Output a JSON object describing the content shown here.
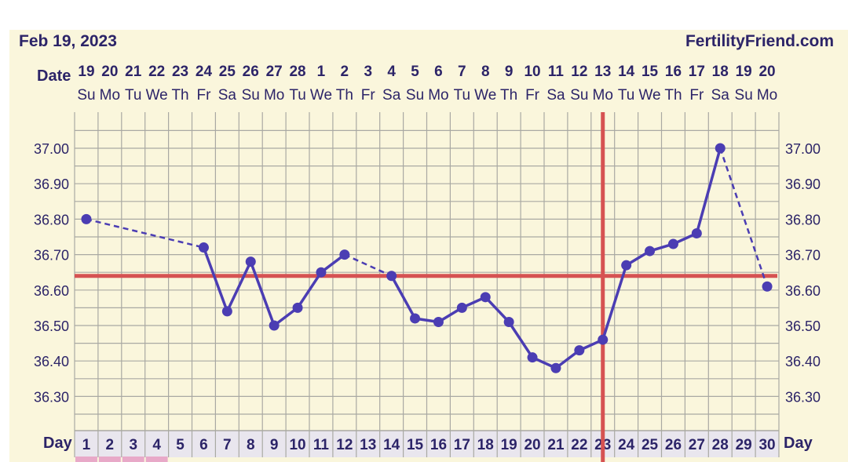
{
  "header": {
    "date_label": "Feb 19, 2023",
    "brand": "FertilityFriend.com"
  },
  "row_labels": {
    "date": "Date",
    "day": "Day"
  },
  "colors": {
    "background": "#faf6dc",
    "grid": "#a9a9a3",
    "line": "#4b3db3",
    "cover_line": "#d65252",
    "text": "#2c2468",
    "day_row_bg": "#e9e6ee",
    "period_marker": "#e8a9c8"
  },
  "chart_data": {
    "type": "line",
    "x_label": "Day",
    "dates": [
      "19",
      "20",
      "21",
      "22",
      "23",
      "24",
      "25",
      "26",
      "27",
      "28",
      "1",
      "2",
      "3",
      "4",
      "5",
      "6",
      "7",
      "8",
      "9",
      "10",
      "11",
      "12",
      "13",
      "14",
      "15",
      "16",
      "17",
      "18",
      "19",
      "20"
    ],
    "weekdays": [
      "Su",
      "Mo",
      "Tu",
      "We",
      "Th",
      "Fr",
      "Sa",
      "Su",
      "Mo",
      "Tu",
      "We",
      "Th",
      "Fr",
      "Sa",
      "Su",
      "Mo",
      "Tu",
      "We",
      "Th",
      "Fr",
      "Sa",
      "Su",
      "Mo",
      "Tu",
      "We",
      "Th",
      "Fr",
      "Sa",
      "Su",
      "Mo"
    ],
    "days": [
      "1",
      "2",
      "3",
      "4",
      "5",
      "6",
      "7",
      "8",
      "9",
      "10",
      "11",
      "12",
      "13",
      "14",
      "15",
      "16",
      "17",
      "18",
      "19",
      "20",
      "21",
      "22",
      "23",
      "24",
      "25",
      "26",
      "27",
      "28",
      "29",
      "30"
    ],
    "y_ticks": [
      "37.00",
      "36.90",
      "36.80",
      "36.70",
      "36.60",
      "36.50",
      "36.40",
      "36.30"
    ],
    "ylim": [
      36.2,
      37.1
    ],
    "temps": [
      36.8,
      null,
      null,
      null,
      null,
      36.72,
      36.54,
      36.68,
      36.5,
      36.55,
      36.65,
      36.7,
      null,
      36.64,
      36.52,
      36.51,
      36.55,
      36.58,
      36.51,
      36.41,
      36.38,
      36.43,
      36.46,
      36.67,
      36.71,
      36.73,
      36.76,
      37.0,
      null,
      36.61
    ],
    "cover_line": 36.64,
    "ovulation_day": 23,
    "period_days": [
      1,
      2,
      3,
      4
    ]
  }
}
